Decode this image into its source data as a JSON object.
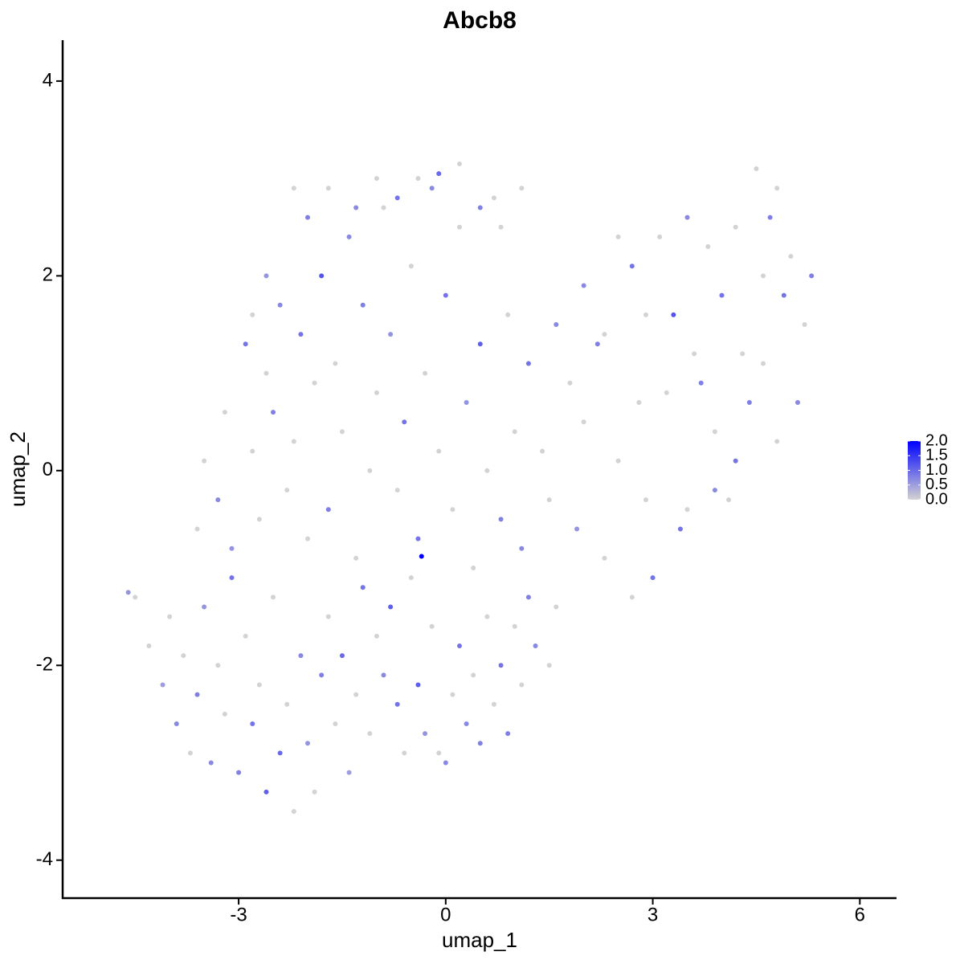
{
  "chart_data": {
    "type": "scatter",
    "title": "Abcb8",
    "x_label": "umap_1",
    "y_label": "umap_2",
    "xlim": [
      -5.55,
      6.52
    ],
    "ylim": [
      -4.39,
      4.42
    ],
    "xticks": [
      -3,
      0,
      3,
      6
    ],
    "yticks": [
      -4,
      -2,
      0,
      2,
      4
    ],
    "color_low": "#d3d3d3",
    "color_high": "#0000ff",
    "colorbar": {
      "lim": [
        0,
        2
      ],
      "ticks": [
        {
          "value": 0,
          "label": "0.0"
        },
        {
          "value": 0.5,
          "label": "0.5"
        },
        {
          "value": 1,
          "label": "1.0"
        },
        {
          "value": 1.5,
          "label": "1.5"
        },
        {
          "value": 2,
          "label": "2.0"
        }
      ]
    },
    "x": [
      -4.6,
      -4.5,
      -4.3,
      -4.1,
      -4.0,
      -3.9,
      -3.8,
      -3.7,
      -3.6,
      -3.5,
      -3.4,
      -3.3,
      -3.2,
      -3.1,
      -3.0,
      -2.9,
      -2.8,
      -2.7,
      -2.6,
      -2.5,
      -2.4,
      -2.3,
      -2.2,
      -2.1,
      -2.0,
      -1.9,
      -1.8,
      -1.7,
      -1.6,
      -1.5,
      -1.4,
      -1.3,
      -1.2,
      -1.1,
      -1.0,
      -0.9,
      -0.8,
      -0.7,
      -0.6,
      -0.5,
      -0.4,
      -0.3,
      -0.2,
      -0.1,
      0.0,
      0.1,
      0.2,
      0.3,
      0.4,
      0.5,
      0.6,
      0.7,
      0.8,
      0.9,
      1.0,
      1.1,
      1.2,
      1.3,
      1.5,
      1.6,
      -3.6,
      -3.5,
      -3.3,
      -3.2,
      -3.1,
      -2.9,
      -2.8,
      -2.7,
      -2.6,
      -2.5,
      -2.4,
      -2.3,
      -2.2,
      -2.1,
      -2.0,
      -1.9,
      -1.8,
      -1.7,
      -1.6,
      -1.5,
      -1.4,
      -1.3,
      -1.2,
      -1.1,
      -1.0,
      -0.9,
      -0.8,
      -0.7,
      -0.6,
      -0.5,
      -0.4,
      -0.35,
      -0.3,
      -0.2,
      -0.1,
      0.0,
      0.1,
      0.2,
      0.3,
      0.4,
      0.5,
      0.6,
      0.7,
      0.8,
      0.9,
      1.0,
      1.1,
      1.2,
      1.4,
      1.5,
      1.6,
      1.8,
      1.9,
      2.0,
      2.2,
      2.3,
      2.5,
      2.7,
      2.8,
      3.0,
      -2.2,
      -2.0,
      -1.7,
      -1.3,
      -1.0,
      -0.7,
      -0.4,
      -0.1,
      0.2,
      0.5,
      0.8,
      1.1,
      -2.6,
      -2.8,
      2.0,
      2.3,
      2.5,
      2.7,
      2.9,
      3.1,
      3.3,
      3.5,
      3.6,
      3.7,
      3.8,
      3.9,
      4.0,
      4.1,
      4.2,
      4.3,
      4.4,
      4.5,
      4.6,
      4.7,
      4.8,
      4.9,
      5.0,
      5.1,
      5.2,
      5.3,
      4.2,
      3.5,
      3.4,
      3.2,
      2.9,
      4.6,
      3.9,
      4.8
    ],
    "y": [
      -1.25,
      -1.3,
      -1.8,
      -2.2,
      -1.5,
      -2.6,
      -1.9,
      -2.9,
      -2.3,
      -1.4,
      -3.0,
      -2.0,
      -2.5,
      -1.1,
      -3.1,
      -1.7,
      -2.6,
      -2.2,
      -3.3,
      -1.3,
      -2.9,
      -2.4,
      -3.5,
      -1.9,
      -2.8,
      -3.3,
      -2.1,
      -1.5,
      -2.6,
      -1.9,
      -3.1,
      -2.3,
      -1.2,
      -2.7,
      -1.7,
      -2.1,
      -1.4,
      -2.4,
      -2.9,
      -1.1,
      -2.2,
      -2.7,
      -1.6,
      -2.9,
      -3.0,
      -2.3,
      -1.8,
      -2.6,
      -2.1,
      -2.8,
      -1.5,
      -2.4,
      -2.0,
      -2.7,
      -1.6,
      -2.2,
      -1.3,
      -1.8,
      -2.0,
      -1.4,
      -0.6,
      0.1,
      -0.3,
      0.6,
      -0.8,
      1.3,
      0.2,
      -0.5,
      1.0,
      0.6,
      1.7,
      -0.2,
      0.3,
      1.4,
      -0.7,
      0.9,
      2.0,
      -0.4,
      1.1,
      0.4,
      2.4,
      -0.9,
      1.7,
      0.0,
      0.8,
      2.7,
      1.4,
      -0.2,
      0.5,
      2.1,
      -0.7,
      -0.88,
      1.0,
      2.9,
      0.2,
      1.8,
      -0.4,
      2.5,
      0.7,
      -1.0,
      1.3,
      0.0,
      2.8,
      -0.5,
      1.6,
      0.4,
      -0.8,
      1.1,
      0.2,
      -0.3,
      1.5,
      0.9,
      -0.6,
      0.5,
      1.3,
      -0.9,
      0.1,
      -1.3,
      0.7,
      -1.1,
      2.9,
      2.6,
      2.9,
      2.7,
      3.0,
      2.8,
      3.0,
      3.05,
      3.15,
      2.7,
      2.5,
      2.9,
      2.0,
      1.6,
      1.9,
      1.4,
      2.4,
      2.1,
      1.6,
      2.4,
      1.6,
      2.6,
      1.2,
      0.9,
      2.3,
      0.4,
      1.8,
      -0.3,
      2.5,
      1.2,
      0.7,
      3.1,
      2.0,
      2.6,
      0.3,
      1.8,
      2.2,
      0.7,
      1.5,
      2.0,
      0.1,
      -0.4,
      -0.6,
      0.8,
      -0.3,
      1.1,
      -0.2,
      2.9
    ],
    "values": [
      0.6,
      0,
      0,
      0.5,
      0,
      0.7,
      0,
      0,
      0.8,
      0.6,
      0.7,
      0,
      0,
      0.9,
      0.8,
      0,
      0.9,
      0,
      1.1,
      0,
      1.0,
      0,
      0,
      0.7,
      0.6,
      0,
      0.8,
      0,
      0,
      1.0,
      0.5,
      0,
      0.9,
      0,
      0,
      0.7,
      1.1,
      0.9,
      0,
      0,
      1.1,
      0.6,
      0,
      0,
      0.7,
      0,
      0.9,
      0.7,
      0,
      0.8,
      0,
      0,
      0.9,
      0.8,
      0,
      0,
      0.8,
      0.7,
      0,
      0,
      0,
      0,
      0.7,
      0,
      0.6,
      0.9,
      0,
      0,
      0,
      0.8,
      0.7,
      0,
      0,
      0.9,
      0,
      0,
      1.2,
      0.8,
      0,
      0,
      0.7,
      0,
      0.8,
      0,
      0,
      0,
      0.6,
      0,
      0.9,
      0,
      0.9,
      2.0,
      0,
      0.7,
      0,
      0.9,
      0,
      0,
      0.6,
      0,
      1.1,
      0,
      0,
      0.8,
      0,
      0,
      0.7,
      0.9,
      0,
      0,
      0.7,
      0,
      0.6,
      0,
      0.8,
      0,
      0,
      0,
      0,
      0.9,
      0,
      0.8,
      0,
      0.7,
      0,
      0.9,
      0,
      1.0,
      0,
      0.8,
      0,
      0,
      0.6,
      0,
      0.7,
      0,
      0,
      0.9,
      0,
      0,
      1.2,
      0.7,
      0,
      0.8,
      0,
      0,
      0.9,
      0,
      0,
      0,
      0.8,
      0,
      0,
      0.8,
      0,
      0.9,
      0,
      0.7,
      0,
      0.8,
      0.9,
      0,
      0.9,
      0,
      0,
      0,
      0.7,
      0
    ]
  }
}
